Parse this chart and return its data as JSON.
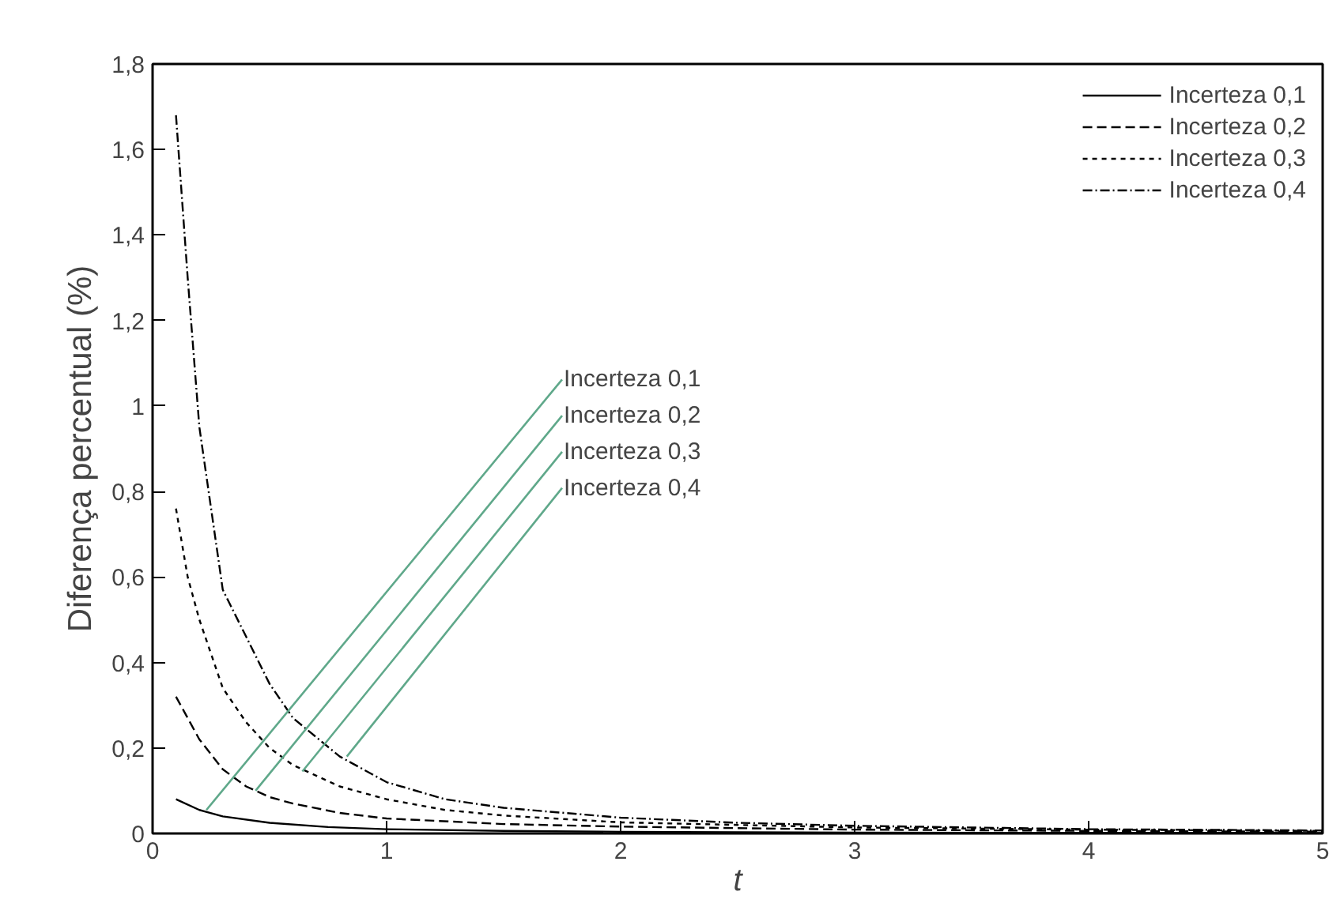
{
  "chart_data": {
    "type": "line",
    "xlabel": "t",
    "ylabel": "Diferença percentual (%)",
    "xlim": [
      0,
      5
    ],
    "ylim": [
      0,
      1.8
    ],
    "xticks": [
      0,
      1,
      2,
      3,
      4,
      5
    ],
    "yticks": [
      0,
      {
        "value": 0.2,
        "label": "0,2"
      },
      {
        "value": 0.4,
        "label": "0,4"
      },
      {
        "value": 0.6,
        "label": "0,6"
      },
      {
        "value": 0.8,
        "label": "0,8"
      },
      1,
      {
        "value": 1.2,
        "label": "1,2"
      },
      {
        "value": 1.4,
        "label": "1,4"
      },
      {
        "value": 1.6,
        "label": "1,6"
      },
      {
        "value": 1.8,
        "label": "1,8"
      }
    ],
    "grid": false,
    "legend": "top right",
    "marker": "none",
    "series": [
      {
        "name": "Incerteza 0,1",
        "color": "#000000",
        "line_style": "solid",
        "x": [
          0.1,
          0.2,
          0.3,
          0.5,
          0.75,
          1,
          1.5,
          2,
          3,
          5
        ],
        "values": [
          0.08,
          0.055,
          0.04,
          0.025,
          0.015,
          0.01,
          0.006,
          0.004,
          0.002,
          0.001
        ]
      },
      {
        "name": "Incerteza 0,2",
        "color": "#000000",
        "line_style": "dashed",
        "x": [
          0.1,
          0.2,
          0.3,
          0.4,
          0.5,
          0.6,
          0.8,
          1,
          1.5,
          2,
          3,
          4,
          5
        ],
        "values": [
          0.32,
          0.22,
          0.15,
          0.11,
          0.085,
          0.07,
          0.048,
          0.035,
          0.022,
          0.016,
          0.009,
          0.006,
          0.004
        ]
      },
      {
        "name": "Incerteza 0,3",
        "color": "#000000",
        "line_style": "dotted",
        "x": [
          0.1,
          0.15,
          0.2,
          0.3,
          0.4,
          0.5,
          0.6,
          0.8,
          1,
          1.25,
          1.5,
          2,
          3,
          4,
          5
        ],
        "values": [
          0.76,
          0.6,
          0.5,
          0.34,
          0.26,
          0.2,
          0.16,
          0.11,
          0.08,
          0.055,
          0.042,
          0.026,
          0.014,
          0.009,
          0.006
        ]
      },
      {
        "name": "Incerteza 0,4",
        "color": "#000000",
        "line_style": "dashdot",
        "x": [
          0.1,
          0.15,
          0.2,
          0.3,
          0.4,
          0.5,
          0.6,
          0.8,
          1,
          1.25,
          1.5,
          2,
          2.5,
          3,
          4,
          5
        ],
        "values": [
          1.68,
          1.3,
          0.95,
          0.57,
          0.46,
          0.35,
          0.27,
          0.18,
          0.12,
          0.08,
          0.06,
          0.037,
          0.025,
          0.018,
          0.01,
          0.007
        ]
      }
    ],
    "annotations": [
      {
        "text": "Incerteza 0,1",
        "x": 0.23,
        "y": 0.055
      },
      {
        "text": "Incerteza 0,2",
        "x": 0.44,
        "y": 0.1
      },
      {
        "text": "Incerteza 0,3",
        "x": 0.64,
        "y": 0.145
      },
      {
        "text": "Incerteza 0,4",
        "x": 0.83,
        "y": 0.18
      }
    ]
  }
}
